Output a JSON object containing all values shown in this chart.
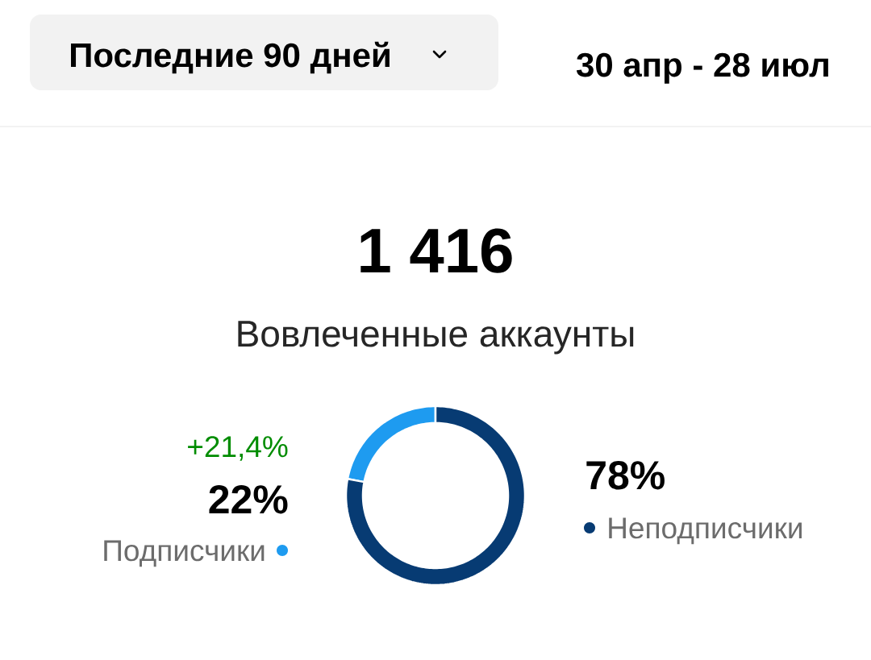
{
  "chart_data": {
    "type": "donut",
    "title": "1 416",
    "subtitle": "Вовлеченные аккаунты",
    "categories": [
      "Подписчики",
      "Неподписчики"
    ],
    "values": [
      22,
      78
    ],
    "colors": [
      "#1e9bf0",
      "#073b73"
    ],
    "value_labels": [
      "22%",
      "78%"
    ],
    "annotations": [
      "Последние 90 дней",
      "30 апр - 28 июл",
      "+21,4%"
    ]
  }
}
